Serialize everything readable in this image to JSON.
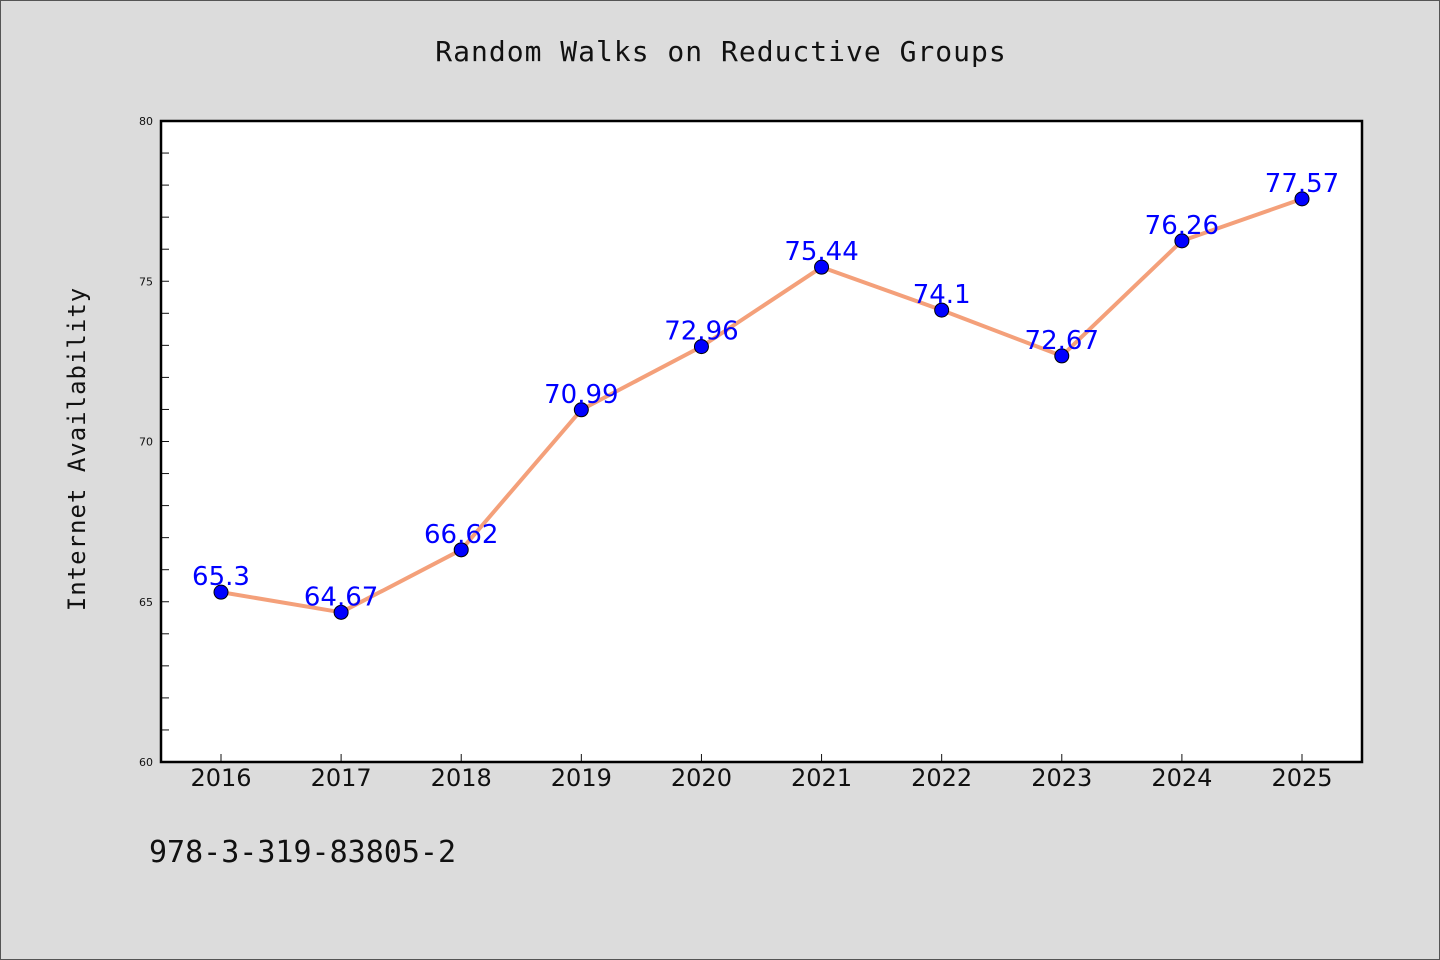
{
  "chart_data": {
    "type": "line",
    "title": "Random Walks on Reductive Groups",
    "xlabel": "",
    "ylabel": "Internet Availability",
    "categories": [
      "2016",
      "2017",
      "2018",
      "2019",
      "2020",
      "2021",
      "2022",
      "2023",
      "2024",
      "2025"
    ],
    "series": [
      {
        "values": [
          65.3,
          64.67,
          66.62,
          70.99,
          72.96,
          75.44,
          74.1,
          72.67,
          76.26,
          77.57
        ],
        "labels": [
          "65.3",
          "64.67",
          "66.62",
          "70.99",
          "72.96",
          "75.44",
          "74.1",
          "72.67",
          "76.26",
          "77.57"
        ]
      }
    ],
    "ylim": [
      60,
      80
    ],
    "yticks": [
      60,
      65,
      70,
      75,
      80
    ],
    "grid": false,
    "colors": {
      "line": "#f4a07a",
      "marker": "#0000ff",
      "data_label": "#0000ff",
      "background": "#dcdcdc",
      "plot_background": "#ffffff"
    }
  },
  "footer": {
    "code": "978-3-319-83805-2"
  }
}
